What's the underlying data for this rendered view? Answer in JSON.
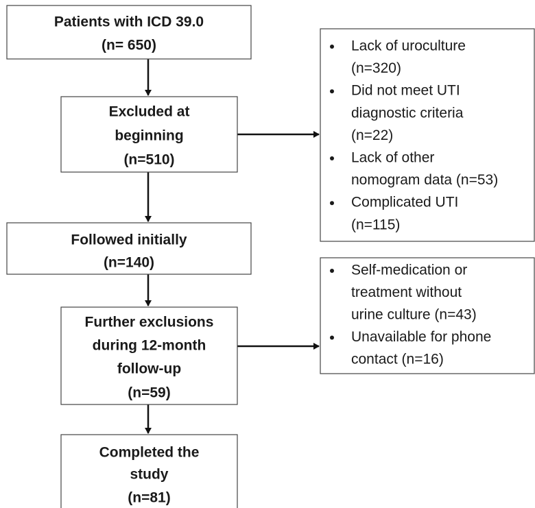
{
  "boxes": [
    {
      "lines": [
        "Patients with ICD 39.0",
        "(n= 650)"
      ]
    },
    {
      "lines": [
        "Excluded at",
        "beginning",
        "(n=510)"
      ]
    },
    {
      "lines": [
        "Followed initially",
        "(n=140)"
      ]
    },
    {
      "lines": [
        "Further exclusions",
        "during 12-month",
        "follow-up",
        "(n=59)"
      ]
    },
    {
      "lines": [
        "Completed the",
        "study",
        "(n=81)"
      ]
    }
  ],
  "side_boxes": [
    {
      "items": [
        {
          "lines": [
            "Lack of uroculture",
            "(n=320)"
          ]
        },
        {
          "lines": [
            "Did not meet UTI",
            "diagnostic criteria",
            "(n=22)"
          ]
        },
        {
          "lines": [
            "Lack of other",
            "nomogram data (n=53)"
          ]
        },
        {
          "lines": [
            "Complicated UTI",
            "(n=115)"
          ]
        }
      ]
    },
    {
      "items": [
        {
          "lines": [
            "Self-medication or",
            "treatment without",
            "urine culture (n=43)"
          ]
        },
        {
          "lines": [
            "Unavailable for phone",
            "contact (n=16)"
          ]
        }
      ]
    }
  ]
}
